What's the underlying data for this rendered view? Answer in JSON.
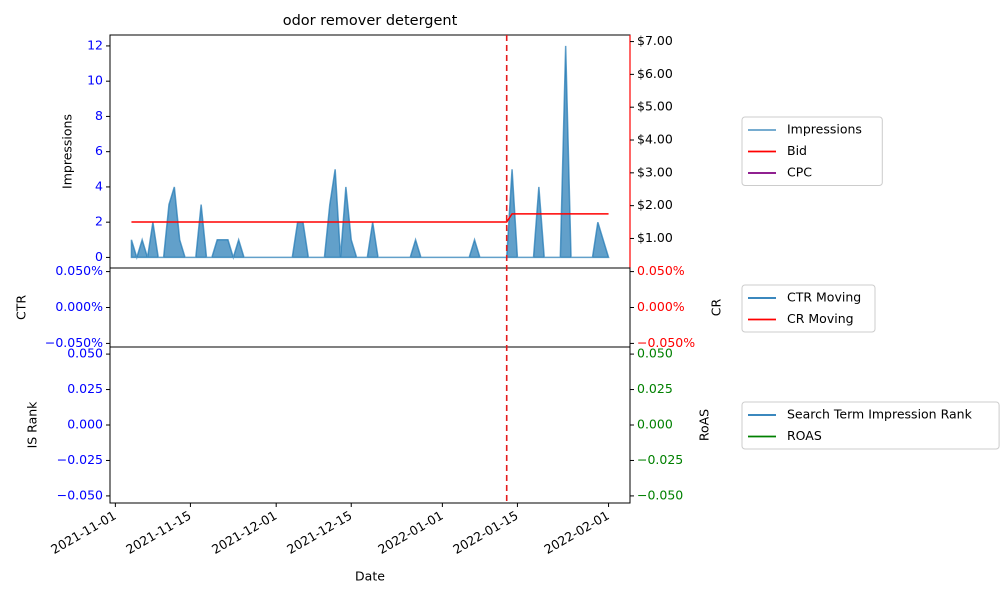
{
  "chart_data": {
    "type": "line",
    "title": "odor remover detergent",
    "xlabel": "Date",
    "x": [
      "2021-11-04",
      "2021-11-05",
      "2021-11-06",
      "2021-11-07",
      "2021-11-08",
      "2021-11-09",
      "2021-11-10",
      "2021-11-11",
      "2021-11-12",
      "2021-11-13",
      "2021-11-14",
      "2021-11-15",
      "2021-11-16",
      "2021-11-17",
      "2021-11-18",
      "2021-11-19",
      "2021-11-20",
      "2021-11-21",
      "2021-11-22",
      "2021-11-23",
      "2021-11-24",
      "2021-11-25",
      "2021-11-26",
      "2021-11-27",
      "2021-11-28",
      "2021-11-29",
      "2021-11-30",
      "2021-12-01",
      "2021-12-02",
      "2021-12-03",
      "2021-12-04",
      "2021-12-05",
      "2021-12-06",
      "2021-12-07",
      "2021-12-08",
      "2021-12-09",
      "2021-12-10",
      "2021-12-11",
      "2021-12-12",
      "2021-12-13",
      "2021-12-14",
      "2021-12-15",
      "2021-12-16",
      "2021-12-17",
      "2021-12-18",
      "2021-12-19",
      "2021-12-20",
      "2021-12-21",
      "2021-12-22",
      "2021-12-23",
      "2021-12-24",
      "2021-12-25",
      "2021-12-26",
      "2021-12-27",
      "2021-12-28",
      "2021-12-29",
      "2021-12-30",
      "2021-12-31",
      "2022-01-01",
      "2022-01-02",
      "2022-01-03",
      "2022-01-04",
      "2022-01-05",
      "2022-01-06",
      "2022-01-07",
      "2022-01-08",
      "2022-01-09",
      "2022-01-10",
      "2022-01-11",
      "2022-01-12",
      "2022-01-13",
      "2022-01-14",
      "2022-01-15",
      "2022-01-16",
      "2022-01-17",
      "2022-01-18",
      "2022-01-19",
      "2022-01-20",
      "2022-01-21",
      "2022-01-22",
      "2022-01-23",
      "2022-01-24",
      "2022-01-25",
      "2022-01-26",
      "2022-01-27",
      "2022-01-28",
      "2022-01-29",
      "2022-01-30",
      "2022-01-31",
      "2022-02-01"
    ],
    "xlim": [
      "2021-10-31",
      "2022-02-05"
    ],
    "xticks": [
      "2021-11-01",
      "2021-11-15",
      "2021-12-01",
      "2021-12-15",
      "2022-01-01",
      "2022-01-15",
      "2022-02-01"
    ],
    "vline": "2022-01-13",
    "vline_color": "#e41a1c",
    "legend": "outside right",
    "panels": [
      {
        "ylabel": "Impressions",
        "ylim": [
          -0.6,
          12.62
        ],
        "yticks": [
          0,
          2,
          4,
          6,
          8,
          10,
          12
        ],
        "ytick_color": "#0000ff",
        "y2lim": [
          0.1,
          7.2
        ],
        "y2tick_color": "#000000",
        "y2spine_color": "#ff0000",
        "y2ticks": [
          {
            "value": 1,
            "label": "$1.00"
          },
          {
            "value": 2,
            "label": "$2.00"
          },
          {
            "value": 3,
            "label": "$3.00"
          },
          {
            "value": 4,
            "label": "$4.00"
          },
          {
            "value": 5,
            "label": "$5.00"
          },
          {
            "value": 6,
            "label": "$6.00"
          },
          {
            "value": 7,
            "label": "$7.00"
          }
        ],
        "series": [
          {
            "name": "Impressions",
            "color": "#1f77b4",
            "fill": true,
            "axis": "y",
            "values": [
              1,
              0,
              1,
              0,
              2,
              0,
              0,
              3,
              4,
              1,
              0,
              0,
              0,
              3,
              0,
              0,
              1,
              1,
              1,
              0,
              1,
              0,
              0,
              0,
              0,
              0,
              0,
              0,
              0,
              0,
              0,
              2,
              2,
              0,
              0,
              0,
              0,
              3,
              5,
              0,
              4,
              1,
              0,
              0,
              0,
              2,
              0,
              0,
              0,
              0,
              0,
              0,
              0,
              1,
              0,
              0,
              0,
              0,
              0,
              0,
              0,
              0,
              0,
              0,
              1,
              0,
              0,
              0,
              0,
              0,
              0,
              5,
              0,
              0,
              0,
              0,
              4,
              0,
              0,
              0,
              0,
              12,
              0,
              0,
              0,
              0,
              0,
              2,
              1,
              0
            ]
          },
          {
            "name": "Bid",
            "color": "#ff0000",
            "axis": "y2",
            "values": [
              1.5,
              1.5,
              1.5,
              1.5,
              1.5,
              1.5,
              1.5,
              1.5,
              1.5,
              1.5,
              1.5,
              1.5,
              1.5,
              1.5,
              1.5,
              1.5,
              1.5,
              1.5,
              1.5,
              1.5,
              1.5,
              1.5,
              1.5,
              1.5,
              1.5,
              1.5,
              1.5,
              1.5,
              1.5,
              1.5,
              1.5,
              1.5,
              1.5,
              1.5,
              1.5,
              1.5,
              1.5,
              1.5,
              1.5,
              1.5,
              1.5,
              1.5,
              1.5,
              1.5,
              1.5,
              1.5,
              1.5,
              1.5,
              1.5,
              1.5,
              1.5,
              1.5,
              1.5,
              1.5,
              1.5,
              1.5,
              1.5,
              1.5,
              1.5,
              1.5,
              1.5,
              1.5,
              1.5,
              1.5,
              1.5,
              1.5,
              1.5,
              1.5,
              1.5,
              1.5,
              1.5,
              1.75,
              1.75,
              1.75,
              1.75,
              1.75,
              1.75,
              1.75,
              1.75,
              1.75,
              1.75,
              1.75,
              1.75,
              1.75,
              1.75,
              1.75,
              1.75,
              1.75,
              1.75,
              1.75
            ]
          },
          {
            "name": "CPC",
            "color": "#800080",
            "axis": "y2",
            "values": [
              null,
              null,
              null,
              null,
              null,
              null,
              null,
              null,
              null,
              null,
              null,
              null,
              null,
              null,
              null,
              null,
              null,
              null,
              null,
              null,
              null,
              null,
              null,
              null,
              null,
              null,
              null,
              null,
              null,
              null,
              null,
              null,
              null,
              null,
              null,
              null,
              null,
              null,
              null,
              null,
              null,
              null,
              null,
              null,
              null,
              null,
              null,
              null,
              null,
              null,
              null,
              null,
              null,
              null,
              null,
              null,
              null,
              null,
              null,
              null,
              null,
              null,
              null,
              null,
              null,
              null,
              null,
              null,
              null,
              null,
              null,
              null,
              null,
              null,
              null,
              null,
              null,
              null,
              null,
              null,
              null,
              null,
              null,
              null,
              null,
              null,
              null,
              null,
              null,
              null
            ]
          }
        ]
      },
      {
        "ylabel": "CTR",
        "y2label": "CR",
        "ylim": [
          -0.055,
          0.055
        ],
        "ytick_color": "#0000ff",
        "y2tick_color": "#ff0000",
        "yticks": [
          {
            "value": -0.05,
            "label": "−0.050%"
          },
          {
            "value": 0,
            "label": "0.000%"
          },
          {
            "value": 0.05,
            "label": "0.050%"
          }
        ],
        "y2lim": [
          -0.055,
          0.055
        ],
        "y2ticks": [
          {
            "value": -0.05,
            "label": "−0.050%"
          },
          {
            "value": 0,
            "label": "0.000%"
          },
          {
            "value": 0.05,
            "label": "0.050%"
          }
        ],
        "series": [
          {
            "name": "CTR Moving",
            "color": "#1f77b4",
            "axis": "y",
            "values": [
              null,
              null,
              null,
              null,
              null,
              null,
              null,
              null,
              null,
              null,
              null,
              null,
              null,
              null,
              null,
              null,
              null,
              null,
              null,
              null,
              null,
              null,
              null,
              null,
              null,
              null,
              null,
              null,
              null,
              null,
              null,
              null,
              null,
              null,
              null,
              null,
              null,
              null,
              null,
              null,
              null,
              null,
              null,
              null,
              null,
              null,
              null,
              null,
              null,
              null,
              null,
              null,
              null,
              null,
              null,
              null,
              null,
              null,
              null,
              null,
              null,
              null,
              null,
              null,
              null,
              null,
              null,
              null,
              null,
              null,
              null,
              null,
              null,
              null,
              null,
              null,
              null,
              null,
              null,
              null,
              null,
              null,
              null,
              null,
              null,
              null,
              null,
              null,
              null,
              null
            ]
          },
          {
            "name": "CR Moving",
            "color": "#ff0000",
            "axis": "y2",
            "values": [
              null,
              null,
              null,
              null,
              null,
              null,
              null,
              null,
              null,
              null,
              null,
              null,
              null,
              null,
              null,
              null,
              null,
              null,
              null,
              null,
              null,
              null,
              null,
              null,
              null,
              null,
              null,
              null,
              null,
              null,
              null,
              null,
              null,
              null,
              null,
              null,
              null,
              null,
              null,
              null,
              null,
              null,
              null,
              null,
              null,
              null,
              null,
              null,
              null,
              null,
              null,
              null,
              null,
              null,
              null,
              null,
              null,
              null,
              null,
              null,
              null,
              null,
              null,
              null,
              null,
              null,
              null,
              null,
              null,
              null,
              null,
              null,
              null,
              null,
              null,
              null,
              null,
              null,
              null,
              null,
              null,
              null,
              null,
              null,
              null,
              null,
              null,
              null,
              null,
              null
            ]
          }
        ]
      },
      {
        "ylabel": "IS Rank",
        "y2label": "RoAS",
        "ylim": [
          -0.055,
          0.055
        ],
        "ytick_color": "#0000ff",
        "y2tick_color": "#008000",
        "yticks": [
          {
            "value": -0.05,
            "label": "−0.050"
          },
          {
            "value": -0.025,
            "label": "−0.025"
          },
          {
            "value": 0,
            "label": "0.000"
          },
          {
            "value": 0.025,
            "label": "0.025"
          },
          {
            "value": 0.05,
            "label": "0.050"
          }
        ],
        "y2lim": [
          -0.055,
          0.055
        ],
        "y2ticks": [
          {
            "value": -0.05,
            "label": "−0.050"
          },
          {
            "value": -0.025,
            "label": "−0.025"
          },
          {
            "value": 0,
            "label": "0.000"
          },
          {
            "value": 0.025,
            "label": "0.025"
          },
          {
            "value": 0.05,
            "label": "0.050"
          }
        ],
        "series": [
          {
            "name": "Search Term Impression Rank",
            "color": "#1f77b4",
            "axis": "y",
            "values": [
              null,
              null,
              null,
              null,
              null,
              null,
              null,
              null,
              null,
              null,
              null,
              null,
              null,
              null,
              null,
              null,
              null,
              null,
              null,
              null,
              null,
              null,
              null,
              null,
              null,
              null,
              null,
              null,
              null,
              null,
              null,
              null,
              null,
              null,
              null,
              null,
              null,
              null,
              null,
              null,
              null,
              null,
              null,
              null,
              null,
              null,
              null,
              null,
              null,
              null,
              null,
              null,
              null,
              null,
              null,
              null,
              null,
              null,
              null,
              null,
              null,
              null,
              null,
              null,
              null,
              null,
              null,
              null,
              null,
              null,
              null,
              null,
              null,
              null,
              null,
              null,
              null,
              null,
              null,
              null,
              null,
              null,
              null,
              null,
              null,
              null,
              null,
              null,
              null,
              null
            ]
          },
          {
            "name": "ROAS",
            "color": "#008000",
            "axis": "y2",
            "values": [
              null,
              null,
              null,
              null,
              null,
              null,
              null,
              null,
              null,
              null,
              null,
              null,
              null,
              null,
              null,
              null,
              null,
              null,
              null,
              null,
              null,
              null,
              null,
              null,
              null,
              null,
              null,
              null,
              null,
              null,
              null,
              null,
              null,
              null,
              null,
              null,
              null,
              null,
              null,
              null,
              null,
              null,
              null,
              null,
              null,
              null,
              null,
              null,
              null,
              null,
              null,
              null,
              null,
              null,
              null,
              null,
              null,
              null,
              null,
              null,
              null,
              null,
              null,
              null,
              null,
              null,
              null,
              null,
              null,
              null,
              null,
              null,
              null,
              null,
              null,
              null,
              null,
              null,
              null,
              null,
              null,
              null,
              null,
              null,
              null,
              null,
              null,
              null,
              null,
              null
            ]
          }
        ]
      }
    ]
  }
}
